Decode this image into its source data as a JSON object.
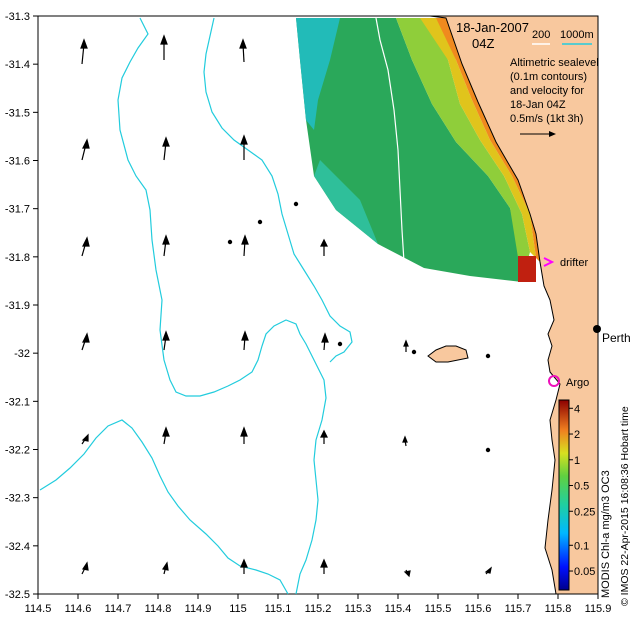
{
  "title": {
    "date": "18-Jan-2007",
    "time": "04Z"
  },
  "scale_bar": {
    "label_left": "200",
    "label_right": "1000m"
  },
  "description_lines": [
    "Altimetric sealevel",
    "(0.1m contours)",
    "and velocity for",
    "18-Jan 04Z"
  ],
  "velocity_key": {
    "label": "0.5m/s (1kt 3h)"
  },
  "places": {
    "perth": "Perth",
    "drifter": "drifter",
    "argo": "Argo"
  },
  "colorbar": {
    "label": "MODIS Chl-a mg/m3 OC3",
    "ticks": [
      "4",
      "2",
      "1",
      "0.5",
      "0.25",
      "0.1",
      "0.05"
    ]
  },
  "credit": "© IMOS 22-Apr-2015 16:08:36 Hobart time",
  "axes": {
    "x_ticks": [
      "114.5",
      "114.6",
      "114.7",
      "114.8",
      "114.9",
      "115",
      "115.1",
      "115.2",
      "115.3",
      "115.4",
      "115.5",
      "115.6",
      "115.7",
      "115.8",
      "115.9"
    ],
    "y_ticks": [
      "-31.3",
      "-31.4",
      "-31.5",
      "-31.6",
      "-31.7",
      "-31.8",
      "-31.9",
      "-32",
      "-32.1",
      "-32.2",
      "-32.3",
      "-32.4",
      "-32.5"
    ],
    "xlim": [
      114.5,
      115.9
    ],
    "ylim": [
      -32.5,
      -31.3
    ]
  },
  "colors": {
    "land": "#f8c89e",
    "isobath": "#22ccdd",
    "drifter_marker": "#ff00ff",
    "argo_marker": "#ee11bb"
  }
}
